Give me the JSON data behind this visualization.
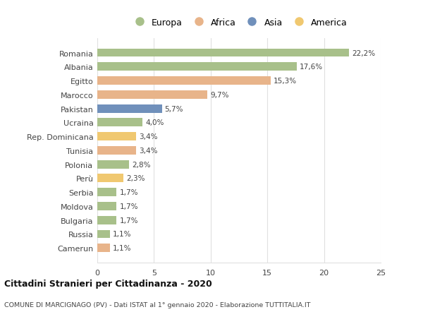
{
  "countries": [
    "Romania",
    "Albania",
    "Egitto",
    "Marocco",
    "Pakistan",
    "Ucraina",
    "Rep. Dominicana",
    "Tunisia",
    "Polonia",
    "Perù",
    "Serbia",
    "Moldova",
    "Bulgaria",
    "Russia",
    "Camerun"
  ],
  "values": [
    22.2,
    17.6,
    15.3,
    9.7,
    5.7,
    4.0,
    3.4,
    3.4,
    2.8,
    2.3,
    1.7,
    1.7,
    1.7,
    1.1,
    1.1
  ],
  "labels": [
    "22,2%",
    "17,6%",
    "15,3%",
    "9,7%",
    "5,7%",
    "4,0%",
    "3,4%",
    "3,4%",
    "2,8%",
    "2,3%",
    "1,7%",
    "1,7%",
    "1,7%",
    "1,1%",
    "1,1%"
  ],
  "continents": [
    "Europa",
    "Europa",
    "Africa",
    "Africa",
    "Asia",
    "Europa",
    "America",
    "Africa",
    "Europa",
    "America",
    "Europa",
    "Europa",
    "Europa",
    "Europa",
    "Africa"
  ],
  "colors": {
    "Europa": "#a8c08a",
    "Africa": "#e8b48a",
    "Asia": "#7090bb",
    "America": "#f0c870"
  },
  "legend_order": [
    "Europa",
    "Africa",
    "Asia",
    "America"
  ],
  "title": "Cittadini Stranieri per Cittadinanza - 2020",
  "subtitle": "COMUNE DI MARCIGNAGO (PV) - Dati ISTAT al 1° gennaio 2020 - Elaborazione TUTTITALIA.IT",
  "xlim": [
    0,
    25
  ],
  "xticks": [
    0,
    5,
    10,
    15,
    20,
    25
  ],
  "background_color": "#ffffff",
  "grid_color": "#e0e0e0",
  "bar_height": 0.6
}
